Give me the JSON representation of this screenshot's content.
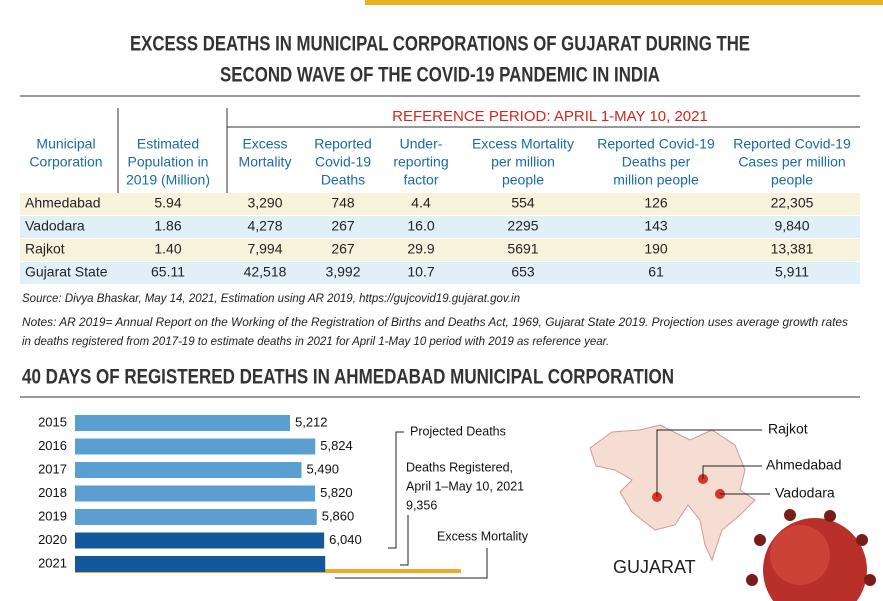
{
  "header": {
    "title_lines": [
      "EXCESS DEATHS IN MUNICIPAL CORPORATIONS OF GUJARAT DURING THE",
      "SECOND WAVE OF THE COVID-19 PANDEMIC IN INDIA"
    ]
  },
  "table": {
    "reference_period": "REFERENCE PERIOD: APRIL 1-MAY 10, 2021",
    "columns": [
      [
        "Municipal",
        "Corporation"
      ],
      [
        "Estimated",
        "Population in",
        "2019 (Million)"
      ],
      [
        "Excess",
        "Mortality"
      ],
      [
        "Reported",
        "Covid-19",
        "Deaths"
      ],
      [
        "Under-",
        "reporting",
        "factor"
      ],
      [
        "Excess Mortality",
        "per million",
        "people"
      ],
      [
        "Reported Covid-19",
        "Deaths per",
        "million people"
      ],
      [
        "Reported Covid-19",
        "Cases per million",
        "people"
      ]
    ],
    "rows": [
      [
        "Ahmedabad",
        "5.94",
        "3,290",
        "748",
        "4.4",
        "554",
        "126",
        "22,305"
      ],
      [
        "Vadodara",
        "1.86",
        "4,278",
        "267",
        "16.0",
        "2295",
        "143",
        "9,840"
      ],
      [
        "Rajkot",
        "1.40",
        "7,994",
        "267",
        "29.9",
        "5691",
        "190",
        "13,381"
      ],
      [
        "Gujarat State",
        "65.11",
        "42,518",
        "3,992",
        "10.7",
        "653",
        "61",
        "5,911"
      ]
    ]
  },
  "source": "Source:  Divya Bhaskar, May 14, 2021, Estimation using AR 2019,    https://gujcovid19.gujarat.gov.in",
  "notes": [
    "Notes: AR 2019= Annual Report on the Working of the Registration of Births and Deaths Act, 1969, Gujarat State 2019. Projection uses average growth rates",
    "in deaths registered from 2017-19 to estimate deaths in 2021 for April 1-May 10 period with 2019 as reference year."
  ],
  "chart_data": {
    "type": "bar",
    "title": "40 DAYS OF REGISTERED DEATHS IN AHMEDABAD MUNICIPAL CORPORATION",
    "categories": [
      "2015",
      "2016",
      "2017",
      "2018",
      "2019",
      "2020",
      "2021"
    ],
    "values": [
      5212,
      5824,
      5490,
      5820,
      5860,
      6040,
      6066
    ],
    "value_labels": [
      "5,212",
      "5,824",
      "5,490",
      "5,820",
      "5,860",
      "6,040",
      null
    ],
    "colors": [
      "#5b9fd1",
      "#5b9fd1",
      "#5b9fd1",
      "#5b9fd1",
      "#5b9fd1",
      "#13589a",
      "#13589a"
    ],
    "registered": 9356,
    "registered_color": "#f0a82a",
    "xlim": [
      0,
      10000
    ],
    "annotations": {
      "projected": "Projected Deaths",
      "registered_lines": [
        "Deaths Registered,",
        "April 1–May 10, 2021",
        "9,356"
      ],
      "excess": "Excess Mortality"
    }
  },
  "map": {
    "title": "GUJARAT",
    "cities": [
      "Rajkot",
      "Ahmedabad",
      "Vadodara"
    ]
  }
}
